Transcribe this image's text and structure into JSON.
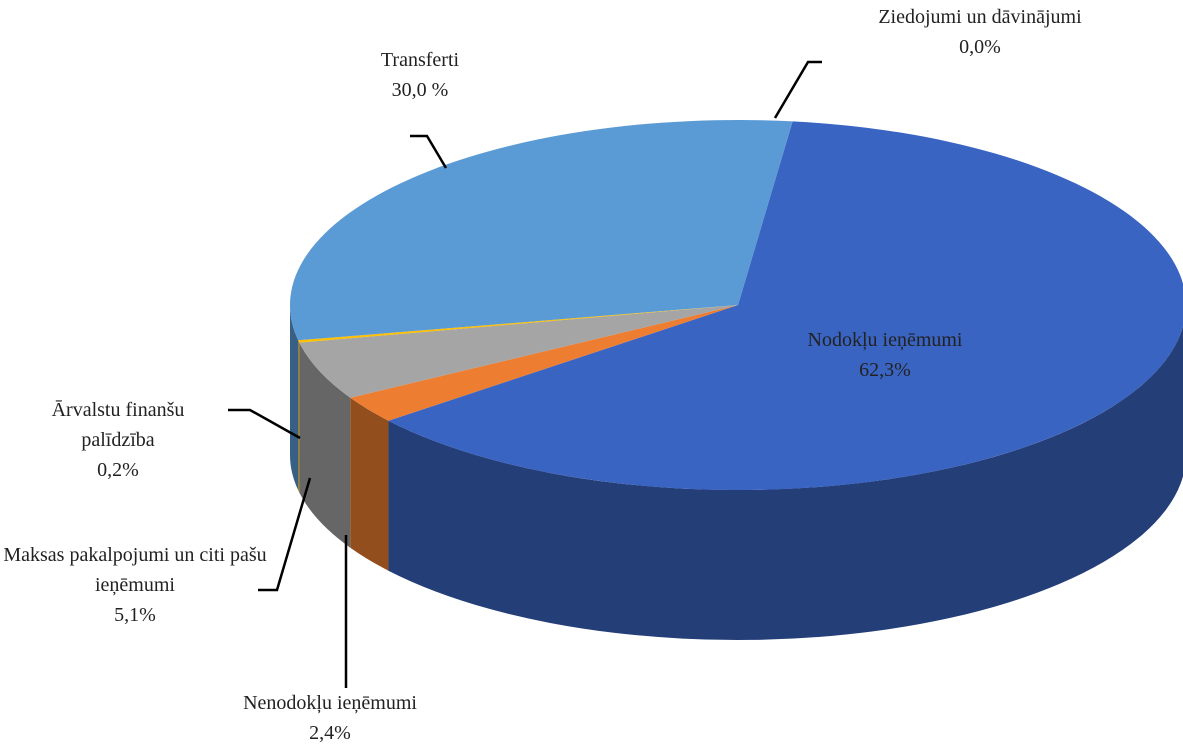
{
  "chart_data": {
    "type": "pie",
    "categories": [
      "Nodokļu ieņēmumi",
      "Nenodokļu ieņēmumi",
      "Maksas pakalpojumi un citi pašu ieņēmumi",
      "Ārvalstu finanšu palīdzība",
      "Transferti",
      "Ziedojumi  un dāvinājumi"
    ],
    "values": [
      62.3,
      2.4,
      5.1,
      0.2,
      30.0,
      0.0
    ],
    "value_labels": [
      "62,3%",
      "2,4%",
      "5,1%",
      "0,2%",
      "30,0 %",
      "0,0%"
    ],
    "colors": [
      "#3a64c2",
      "#ed7d31",
      "#a5a5a5",
      "#ffc000",
      "#5b9bd5",
      "#4472c4"
    ]
  }
}
